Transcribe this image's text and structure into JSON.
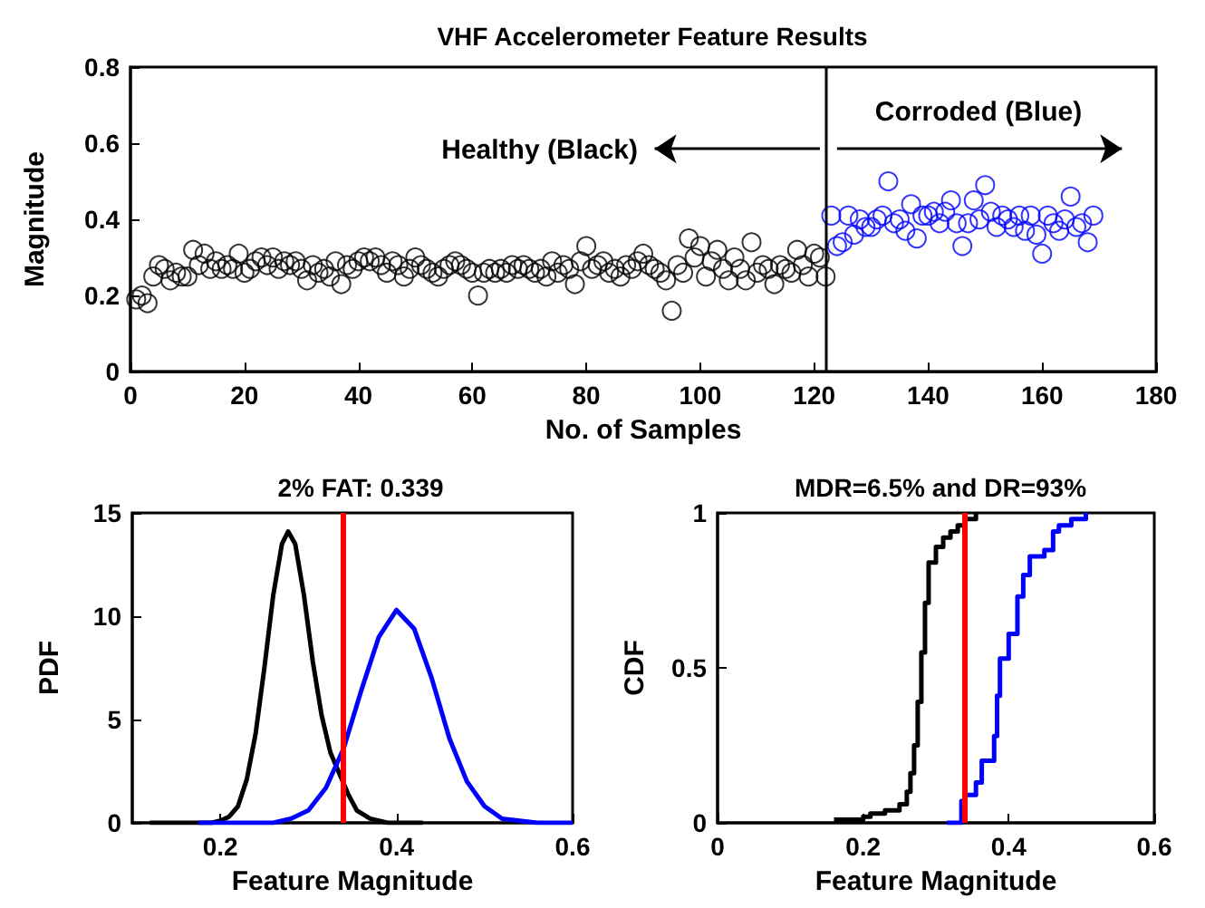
{
  "chart_data": [
    {
      "type": "scatter",
      "title": "VHF Accelerometer Feature Results",
      "xlabel": "No. of Samples",
      "ylabel": "Magnitude",
      "xlim": [
        0,
        180
      ],
      "ylim": [
        0,
        0.8
      ],
      "xticks": [
        0,
        20,
        40,
        60,
        80,
        100,
        120,
        140,
        160,
        180
      ],
      "yticks": [
        0,
        0.2,
        0.4,
        0.6,
        0.8
      ],
      "marker": "circle",
      "annotations": [
        "Healthy (Black)",
        "Corroded (Blue)"
      ],
      "ref_lines": [
        {
          "axis": "x",
          "value": 122,
          "color": "#000000"
        }
      ],
      "series": [
        {
          "color": "#000000",
          "x": [
            1,
            2,
            3,
            4,
            5,
            6,
            7,
            8,
            9,
            10,
            11,
            12,
            13,
            14,
            15,
            16,
            17,
            18,
            19,
            20,
            21,
            22,
            23,
            24,
            25,
            26,
            27,
            28,
            29,
            30,
            31,
            32,
            33,
            34,
            35,
            36,
            37,
            38,
            39,
            40,
            41,
            42,
            43,
            44,
            45,
            46,
            47,
            48,
            49,
            50,
            51,
            52,
            53,
            54,
            55,
            56,
            57,
            58,
            59,
            60,
            61,
            62,
            63,
            64,
            65,
            66,
            67,
            68,
            69,
            70,
            71,
            72,
            73,
            74,
            75,
            76,
            77,
            78,
            79,
            80,
            81,
            82,
            83,
            84,
            85,
            86,
            87,
            88,
            89,
            90,
            91,
            92,
            93,
            94,
            95,
            96,
            97,
            98,
            99,
            100,
            101,
            102,
            103,
            104,
            105,
            106,
            107,
            108,
            109,
            110,
            111,
            112,
            113,
            114,
            115,
            116,
            117,
            118,
            119,
            120,
            121,
            122
          ],
          "values": [
            0.19,
            0.2,
            0.18,
            0.25,
            0.28,
            0.27,
            0.24,
            0.26,
            0.25,
            0.25,
            0.32,
            0.28,
            0.31,
            0.27,
            0.29,
            0.27,
            0.28,
            0.27,
            0.31,
            0.26,
            0.27,
            0.29,
            0.3,
            0.28,
            0.3,
            0.27,
            0.29,
            0.28,
            0.29,
            0.27,
            0.24,
            0.28,
            0.26,
            0.27,
            0.25,
            0.29,
            0.23,
            0.28,
            0.27,
            0.29,
            0.3,
            0.29,
            0.3,
            0.28,
            0.26,
            0.29,
            0.28,
            0.25,
            0.27,
            0.3,
            0.28,
            0.27,
            0.26,
            0.25,
            0.27,
            0.28,
            0.29,
            0.28,
            0.27,
            0.26,
            0.2,
            0.26,
            0.27,
            0.26,
            0.27,
            0.26,
            0.28,
            0.27,
            0.28,
            0.27,
            0.26,
            0.27,
            0.25,
            0.29,
            0.26,
            0.28,
            0.27,
            0.23,
            0.29,
            0.33,
            0.27,
            0.28,
            0.29,
            0.26,
            0.27,
            0.25,
            0.28,
            0.27,
            0.29,
            0.31,
            0.28,
            0.27,
            0.26,
            0.24,
            0.16,
            0.28,
            0.26,
            0.35,
            0.3,
            0.33,
            0.25,
            0.29,
            0.32,
            0.27,
            0.24,
            0.3,
            0.27,
            0.24,
            0.34,
            0.26,
            0.28,
            0.27,
            0.23,
            0.28,
            0.27,
            0.26,
            0.32,
            0.28,
            0.25,
            0.31,
            0.3,
            0.25
          ]
        },
        {
          "color": "#0000ff",
          "x": [
            123,
            124,
            125,
            126,
            127,
            128,
            129,
            130,
            131,
            132,
            133,
            134,
            135,
            136,
            137,
            138,
            139,
            140,
            141,
            142,
            143,
            144,
            145,
            146,
            147,
            148,
            149,
            150,
            151,
            152,
            153,
            154,
            155,
            156,
            157,
            158,
            159,
            160,
            161,
            162,
            163,
            164,
            165,
            166,
            167,
            168,
            169
          ],
          "values": [
            0.41,
            0.33,
            0.34,
            0.41,
            0.36,
            0.4,
            0.38,
            0.38,
            0.4,
            0.41,
            0.5,
            0.39,
            0.4,
            0.37,
            0.44,
            0.35,
            0.41,
            0.41,
            0.42,
            0.39,
            0.42,
            0.45,
            0.39,
            0.33,
            0.39,
            0.45,
            0.4,
            0.49,
            0.42,
            0.38,
            0.41,
            0.4,
            0.38,
            0.41,
            0.37,
            0.41,
            0.36,
            0.31,
            0.41,
            0.39,
            0.37,
            0.4,
            0.46,
            0.38,
            0.39,
            0.34,
            0.41
          ]
        }
      ]
    },
    {
      "type": "line",
      "title": "2% FAT: 0.339",
      "xlabel": "Feature Magnitude",
      "ylabel": "PDF",
      "xlim": [
        0.1,
        0.6
      ],
      "ylim": [
        0,
        15
      ],
      "xticks": [
        0.2,
        0.4,
        0.6
      ],
      "yticks": [
        0,
        5,
        10,
        15
      ],
      "ref_lines": [
        {
          "axis": "x",
          "value": 0.339,
          "color": "#ff0000"
        }
      ],
      "series": [
        {
          "color": "#000000",
          "x": [
            0.12,
            0.18,
            0.19,
            0.2,
            0.21,
            0.22,
            0.23,
            0.24,
            0.25,
            0.26,
            0.27,
            0.277,
            0.285,
            0.295,
            0.305,
            0.315,
            0.325,
            0.335,
            0.345,
            0.355,
            0.37,
            0.39,
            0.43
          ],
          "values": [
            0,
            0,
            0,
            0.1,
            0.3,
            0.8,
            2.1,
            4.3,
            7.5,
            11,
            13.5,
            14.1,
            13.5,
            11,
            7.8,
            5.2,
            3.4,
            2.4,
            1.4,
            0.6,
            0.2,
            0,
            0
          ]
        },
        {
          "color": "#0000ff",
          "x": [
            0.175,
            0.26,
            0.28,
            0.3,
            0.32,
            0.34,
            0.36,
            0.38,
            0.4,
            0.42,
            0.44,
            0.46,
            0.48,
            0.5,
            0.52,
            0.54,
            0.56,
            0.6
          ],
          "values": [
            0,
            0,
            0.2,
            0.6,
            1.7,
            3.6,
            6.4,
            9,
            10.3,
            9.4,
            7,
            4.1,
            2,
            0.8,
            0.2,
            0.1,
            0,
            0
          ]
        }
      ]
    },
    {
      "type": "step",
      "title": "MDR=6.5% and DR=93%",
      "xlabel": "Feature Magnitude",
      "ylabel": "CDF",
      "xlim": [
        0,
        0.6
      ],
      "ylim": [
        0,
        1
      ],
      "xticks": [
        0,
        0.2,
        0.4,
        0.6
      ],
      "yticks": [
        0,
        0.5,
        1
      ],
      "ref_lines": [
        {
          "axis": "x",
          "value": 0.339,
          "color": "#ff0000"
        }
      ],
      "series": [
        {
          "color": "#000000",
          "x": [
            0.16,
            0.2,
            0.21,
            0.23,
            0.25,
            0.26,
            0.265,
            0.27,
            0.275,
            0.28,
            0.285,
            0.29,
            0.3,
            0.31,
            0.32,
            0.33,
            0.34,
            0.355
          ],
          "values": [
            0.01,
            0.02,
            0.03,
            0.04,
            0.06,
            0.1,
            0.16,
            0.25,
            0.39,
            0.55,
            0.71,
            0.84,
            0.89,
            0.92,
            0.94,
            0.96,
            0.98,
            1
          ]
        },
        {
          "color": "#0000ff",
          "x": [
            0.315,
            0.335,
            0.34,
            0.355,
            0.363,
            0.38,
            0.384,
            0.388,
            0.4,
            0.412,
            0.42,
            0.429,
            0.449,
            0.461,
            0.469,
            0.486,
            0.506
          ],
          "values": [
            0,
            0.07,
            0.09,
            0.13,
            0.2,
            0.28,
            0.41,
            0.53,
            0.61,
            0.73,
            0.8,
            0.86,
            0.88,
            0.94,
            0.96,
            0.98,
            1
          ]
        }
      ]
    }
  ]
}
